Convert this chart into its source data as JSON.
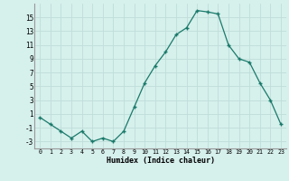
{
  "x": [
    0,
    1,
    2,
    3,
    4,
    5,
    6,
    7,
    8,
    9,
    10,
    11,
    12,
    13,
    14,
    15,
    16,
    17,
    18,
    19,
    20,
    21,
    22,
    23
  ],
  "y": [
    0.5,
    -0.5,
    -1.5,
    -2.5,
    -1.5,
    -3.0,
    -2.5,
    -3.0,
    -1.5,
    2.0,
    5.5,
    8.0,
    10.0,
    12.5,
    13.5,
    16.0,
    15.8,
    15.5,
    11.0,
    9.0,
    8.5,
    5.5,
    3.0,
    -0.5
  ],
  "xlabel": "Humidex (Indice chaleur)",
  "xlim": [
    -0.5,
    23.5
  ],
  "ylim": [
    -4,
    17
  ],
  "yticks": [
    -3,
    -1,
    1,
    3,
    5,
    7,
    9,
    11,
    13,
    15
  ],
  "xtick_labels": [
    "0",
    "1",
    "2",
    "3",
    "4",
    "5",
    "6",
    "7",
    "8",
    "9",
    "10",
    "11",
    "12",
    "13",
    "14",
    "15",
    "16",
    "17",
    "18",
    "19",
    "20",
    "21",
    "22",
    "23"
  ],
  "line_color": "#1a7a6a",
  "marker_color": "#1a7a6a",
  "bg_color": "#d6f0ec",
  "grid_color": "#c0ddd9"
}
